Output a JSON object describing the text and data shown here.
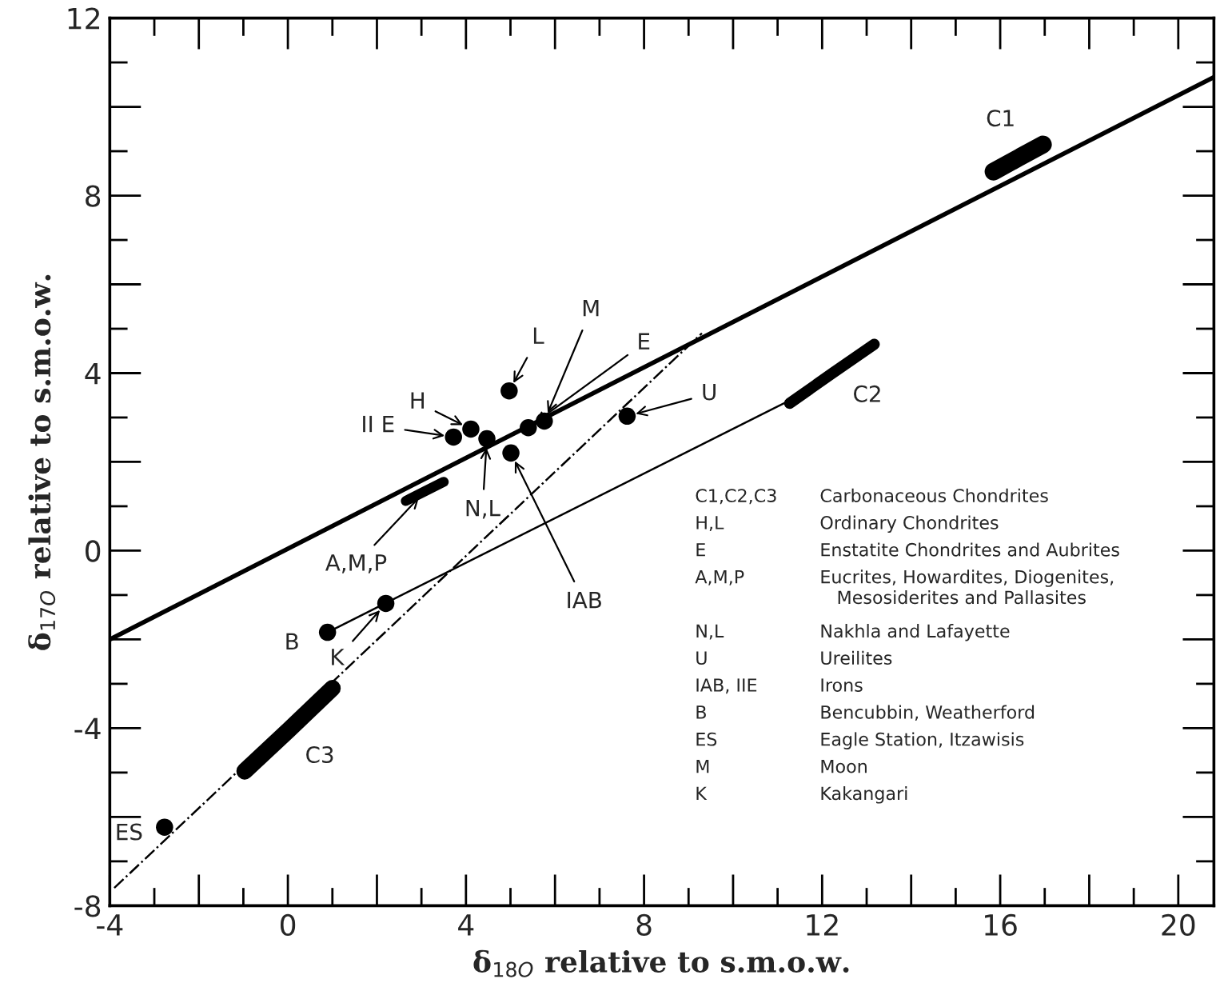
{
  "chart_data": {
    "type": "scatter",
    "xlabel": "δ$_{18O}$ relative to s.m.o.w.",
    "ylabel": "δ$_{17O}$ relative to s.m.o.w.",
    "xlim": [
      -4,
      20.8
    ],
    "ylim": [
      -8,
      12
    ],
    "xticks": [
      -4,
      0,
      4,
      8,
      12,
      16,
      20
    ],
    "yticks": [
      -8,
      -4,
      0,
      4,
      8,
      12
    ],
    "series": [
      {
        "type": "line",
        "color": "#000000",
        "line_style": "solid",
        "x": [
          -4,
          20.8
        ],
        "values": [
          -2.0,
          10.67
        ]
      },
      {
        "type": "line",
        "color": "#000000",
        "line_style": "solid",
        "x": [
          0.89,
          11.3
        ],
        "values": [
          -1.84,
          3.4
        ]
      },
      {
        "type": "line",
        "color": "#000000",
        "line_style": "dashed",
        "x": [
          -3.9,
          9.3
        ],
        "values": [
          -7.6,
          4.9
        ]
      },
      {
        "type": "line",
        "color": "#000000",
        "line_style": "solid",
        "x": [
          -0.97,
          0.02,
          1.0
        ],
        "values": [
          -4.97,
          -4.04,
          -3.1
        ]
      },
      {
        "type": "line",
        "color": "#000000",
        "line_style": "solid",
        "x": [
          11.27,
          12.22,
          13.17
        ],
        "values": [
          3.32,
          3.99,
          4.65
        ]
      },
      {
        "type": "line",
        "color": "#000000",
        "line_style": "solid",
        "x": [
          15.85,
          16.41,
          16.96
        ],
        "values": [
          8.54,
          8.85,
          9.15
        ]
      },
      {
        "type": "line",
        "color": "#000000",
        "line_style": "solid",
        "x": [
          2.65,
          3.08,
          3.5
        ],
        "values": [
          1.12,
          1.34,
          1.55
        ]
      },
      {
        "color": "#000000",
        "marker": "circle",
        "x": [
          3.72,
          4.11,
          4.47,
          4.97,
          5.4,
          5.76,
          5.01,
          7.62,
          0.89,
          2.2,
          -2.77
        ],
        "values": [
          2.56,
          2.74,
          2.52,
          3.6,
          2.77,
          2.92,
          2.2,
          3.03,
          -1.84,
          -1.19,
          -6.23
        ]
      }
    ],
    "annotations": [
      {
        "text": "C1",
        "x": 16.41,
        "y": 8.85
      },
      {
        "text": "C2",
        "x": 12.22,
        "y": 3.99
      },
      {
        "text": "C3",
        "x": 0.02,
        "y": -4.04
      },
      {
        "text": "ES",
        "x": -2.77,
        "y": -6.23
      },
      {
        "text": "B",
        "x": 0.89,
        "y": -1.84
      },
      {
        "text": "K",
        "x": 2.2,
        "y": -1.19
      },
      {
        "text": "A,M,P",
        "x": 3.08,
        "y": 1.34
      },
      {
        "text": "IAB",
        "x": 5.01,
        "y": 2.2
      },
      {
        "text": "II E",
        "x": 3.72,
        "y": 2.56
      },
      {
        "text": "H",
        "x": 4.11,
        "y": 2.74
      },
      {
        "text": "N,L",
        "x": 4.47,
        "y": 2.52
      },
      {
        "text": "L",
        "x": 4.97,
        "y": 3.6
      },
      {
        "text": "M",
        "x": 5.76,
        "y": 2.92
      },
      {
        "text": "E",
        "x": 5.4,
        "y": 2.77
      },
      {
        "text": "U",
        "x": 7.62,
        "y": 3.03
      },
      "C1,C2,C3",
      "Carbonaceous Chondrites",
      "H,L",
      "Ordinary Chondrites",
      "E",
      "Enstatite Chondrites and Aubrites",
      "A,M,P",
      "Eucrites, Howardites, Diogenites,\n   Mesosiderites and Pallasites",
      "N,L",
      "Nakhla and Lafayette",
      "U",
      "Ureilites",
      "IAB, IIE",
      "Irons",
      "B",
      "Bencubbin, Weatherford",
      "ES",
      "Eagle Station, Itzawisis",
      "M",
      "Moon",
      "K",
      "Kakangari"
    ]
  }
}
